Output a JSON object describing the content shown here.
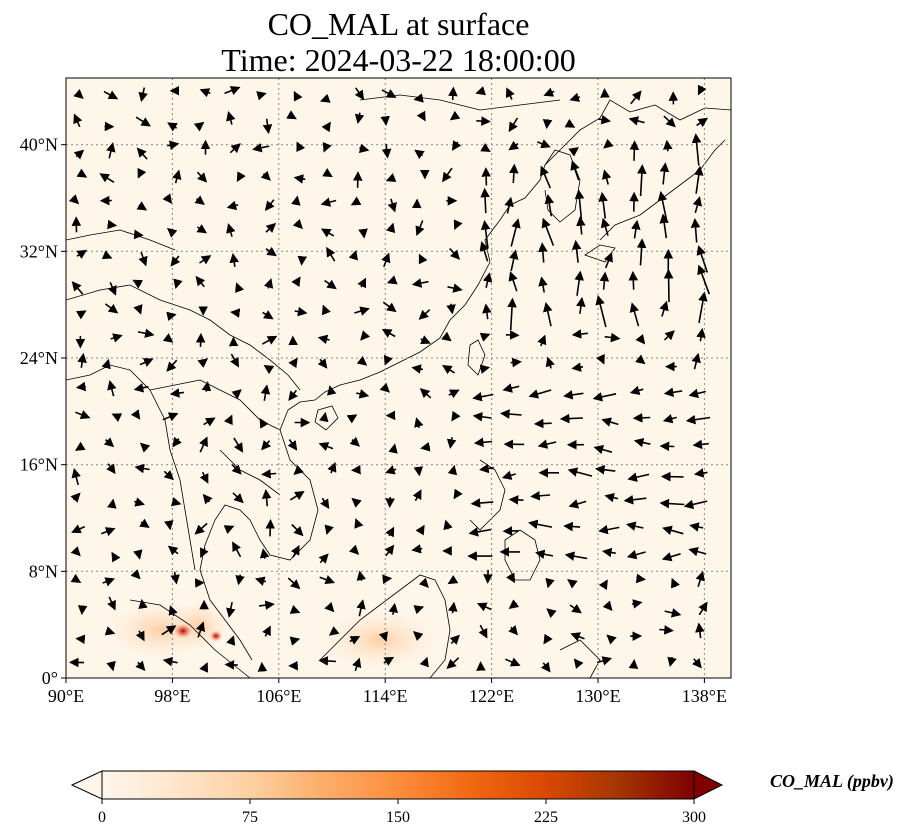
{
  "title_line1": "CO_MAL at surface",
  "title_line2": "Time: 2024-03-22 18:00:00",
  "map": {
    "lon_range": [
      90,
      140
    ],
    "lat_range": [
      0,
      45
    ],
    "lon_ticks": [
      {
        "value": 90,
        "label": "90°E"
      },
      {
        "value": 98,
        "label": "98°E"
      },
      {
        "value": 106,
        "label": "106°E"
      },
      {
        "value": 114,
        "label": "114°E"
      },
      {
        "value": 122,
        "label": "122°E"
      },
      {
        "value": 130,
        "label": "130°E"
      },
      {
        "value": 138,
        "label": "138°E"
      }
    ],
    "lat_ticks": [
      {
        "value": 0,
        "label": "0°"
      },
      {
        "value": 8,
        "label": "8°N"
      },
      {
        "value": 16,
        "label": "16°N"
      },
      {
        "value": 24,
        "label": "24°N"
      },
      {
        "value": 32,
        "label": "32°N"
      },
      {
        "value": 40,
        "label": "40°N"
      }
    ],
    "gridlines": true,
    "background_color": "#fff6ea",
    "hotspot_color": "#8b0000"
  },
  "colorbar": {
    "label": "CO_MAL (ppbv)",
    "min": 0,
    "max": 300,
    "ticks": [
      "0",
      "75",
      "150",
      "225",
      "300"
    ],
    "colors": [
      "#fff5eb",
      "#fee6ce",
      "#fdd0a2",
      "#fdae6b",
      "#fd8d3c",
      "#f16913",
      "#d94801",
      "#a63603",
      "#7f0000"
    ]
  }
}
